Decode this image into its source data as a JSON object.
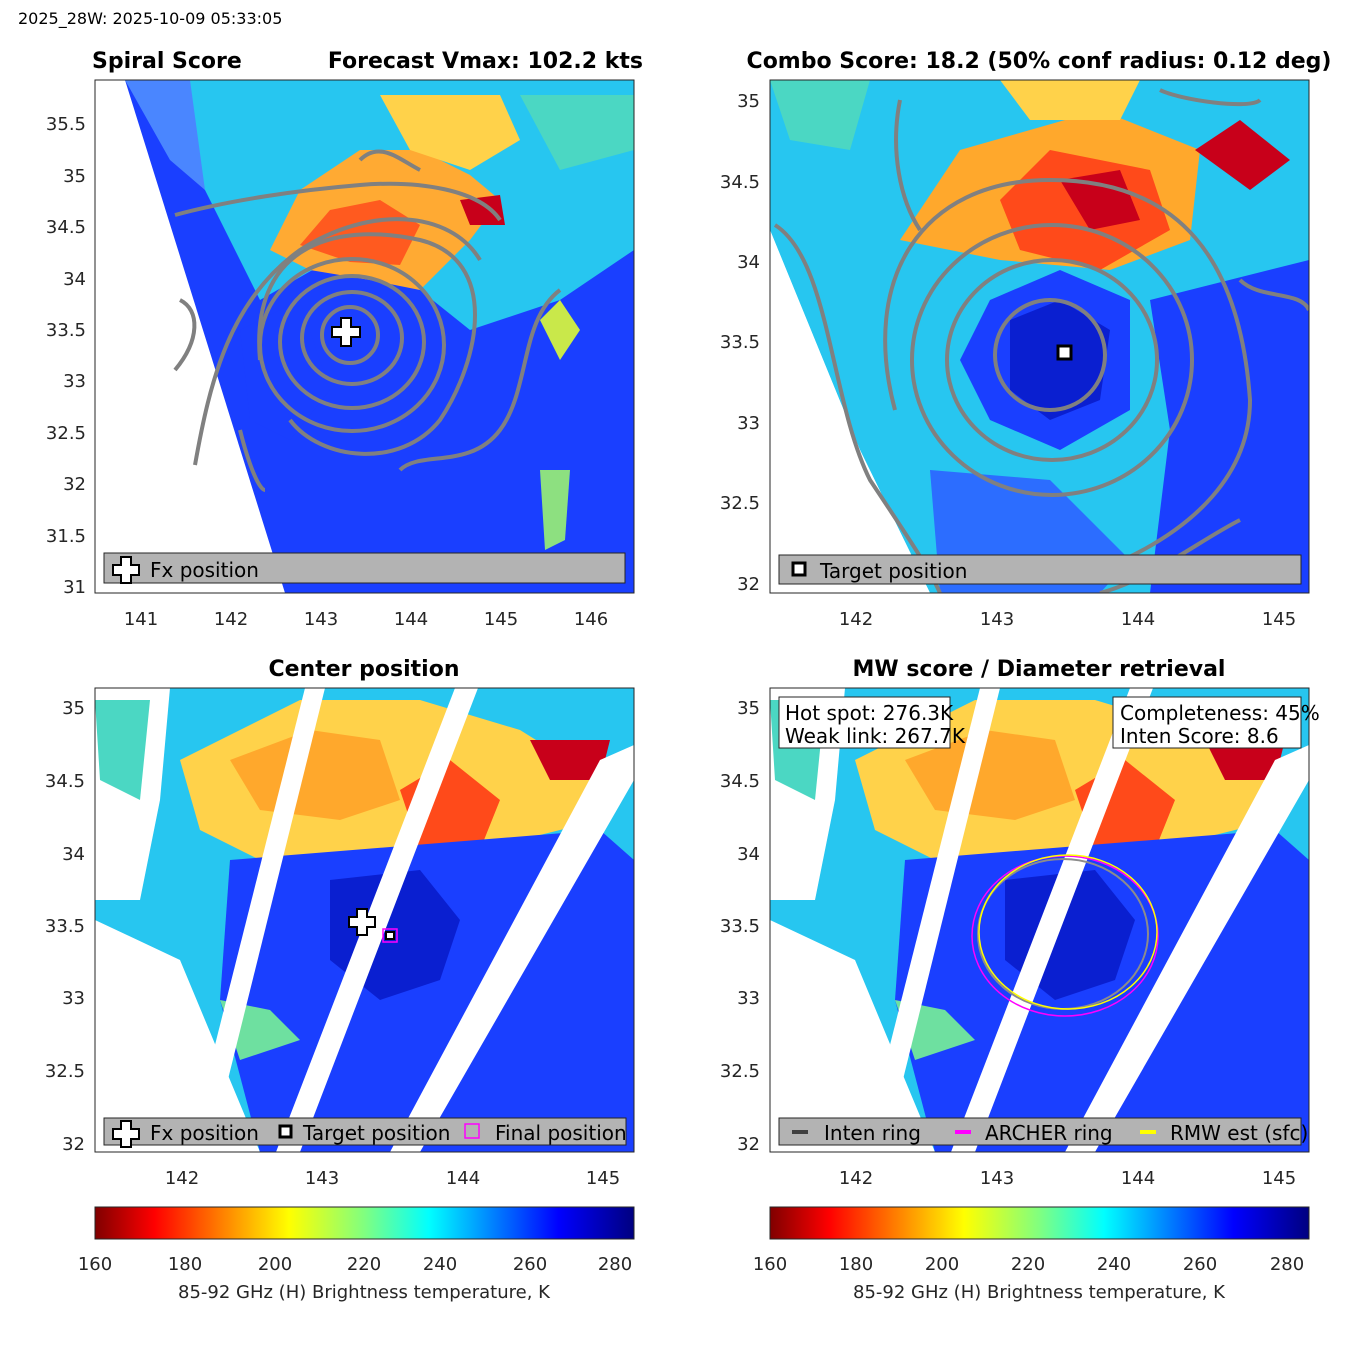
{
  "header": "2025_28W: 2025-10-09 05:33:05",
  "panels": {
    "p1": {
      "title_left": "Spiral Score",
      "title_right": "Forecast Vmax: 102.2 kts",
      "legend": [
        "Fx position"
      ]
    },
    "p2": {
      "title": "Combo Score: 18.2  (50% conf radius: 0.12 deg)",
      "legend": [
        "Target position"
      ]
    },
    "p3": {
      "title": "Center position",
      "legend": [
        "Fx position",
        "Target position",
        "Final position"
      ]
    },
    "p4": {
      "title": "MW score / Diameter retrieval",
      "box_left": [
        "Hot spot: 276.3K",
        "Weak link: 267.7K"
      ],
      "box_right": [
        "Completeness: 45%",
        "Inten Score: 8.6"
      ],
      "legend": [
        "Inten ring",
        "ARCHER ring",
        "RMW est (sfc)"
      ]
    }
  },
  "colorbar": {
    "label": "85-92 GHz (H) Brightness temperature, K",
    "ticks": [
      "160",
      "180",
      "200",
      "220",
      "240",
      "260",
      "280"
    ]
  },
  "colors": {
    "inten_ring": "#8c8c8c",
    "archer_ring": "#ff00ff",
    "rmw_ring": "#ffff00",
    "contour": "#808080",
    "legend_bg": "#b3b3b3"
  },
  "chart_data": [
    {
      "type": "heatmap",
      "panel": "Spiral Score",
      "x_ticks": [
        141,
        142,
        143,
        144,
        145,
        146
      ],
      "y_ticks": [
        31,
        31.5,
        32,
        32.5,
        33,
        33.5,
        34,
        34.5,
        35,
        35.5
      ],
      "xlim": [
        140.5,
        146.5
      ],
      "ylim": [
        30.95,
        35.9
      ],
      "markers": [
        {
          "name": "Fx position",
          "lon": 143.3,
          "lat": 33.52
        }
      ]
    },
    {
      "type": "heatmap",
      "panel": "Combo Score",
      "x_ticks": [
        142,
        143,
        144,
        145
      ],
      "y_ticks": [
        32,
        32.5,
        33,
        33.5,
        34,
        34.5,
        35
      ],
      "xlim": [
        141.35,
        145.2
      ],
      "ylim": [
        31.93,
        35.12
      ],
      "markers": [
        {
          "name": "Target position",
          "lon": 143.48,
          "lat": 33.43
        }
      ]
    },
    {
      "type": "heatmap",
      "panel": "Center position",
      "x_ticks": [
        142,
        143,
        144,
        145
      ],
      "y_ticks": [
        32,
        32.5,
        33,
        33.5,
        34,
        34.5,
        35
      ],
      "xlim": [
        141.35,
        145.2
      ],
      "ylim": [
        31.93,
        35.12
      ],
      "markers": [
        {
          "name": "Fx position",
          "lon": 143.3,
          "lat": 33.53
        },
        {
          "name": "Target position",
          "lon": 143.48,
          "lat": 33.43
        },
        {
          "name": "Final position",
          "lon": 143.48,
          "lat": 33.43
        }
      ]
    },
    {
      "type": "heatmap",
      "panel": "MW score / Diameter retrieval",
      "x_ticks": [
        142,
        143,
        144,
        145
      ],
      "y_ticks": [
        32,
        32.5,
        33,
        33.5,
        34,
        34.5,
        35
      ],
      "xlim": [
        141.35,
        145.2
      ],
      "ylim": [
        31.93,
        35.12
      ],
      "rings": [
        {
          "name": "Inten ring",
          "lon": 143.47,
          "lat": 33.42,
          "r_deg": 0.6
        },
        {
          "name": "ARCHER ring",
          "lon": 143.48,
          "lat": 33.42,
          "r_deg": 0.64
        },
        {
          "name": "RMW est (sfc)",
          "lon": 143.5,
          "lat": 33.42,
          "r_deg": 0.62
        }
      ]
    }
  ]
}
